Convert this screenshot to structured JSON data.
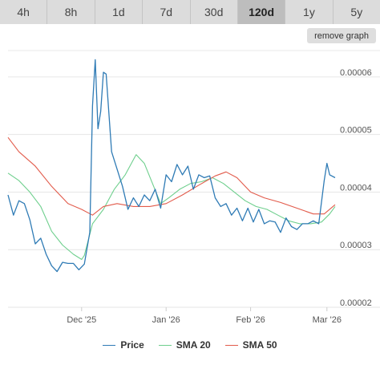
{
  "timeframe_tabs": [
    {
      "label": "4h"
    },
    {
      "label": "8h"
    },
    {
      "label": "1d"
    },
    {
      "label": "7d"
    },
    {
      "label": "30d"
    },
    {
      "label": "120d",
      "active": true
    },
    {
      "label": "1y"
    },
    {
      "label": "5y"
    }
  ],
  "remove_graph_label": "remove graph",
  "chart_data": {
    "type": "line",
    "x_start": "2025-11-04",
    "x_end": "2026-03-04",
    "ylim": [
      2e-05,
      6.5e-05
    ],
    "y_ticks": [
      {
        "value": 2e-05,
        "label": "0.00002"
      },
      {
        "value": 3e-05,
        "label": "0.00003"
      },
      {
        "value": 4e-05,
        "label": "0.00004"
      },
      {
        "value": 5e-05,
        "label": "0.00005"
      },
      {
        "value": 6e-05,
        "label": "0.00006"
      }
    ],
    "x_ticks": [
      {
        "date": "2025-12-01",
        "label": "Dec '25"
      },
      {
        "date": "2026-01-01",
        "label": "Jan '26"
      },
      {
        "date": "2026-02-01",
        "label": "Feb '26"
      },
      {
        "date": "2026-03-01",
        "label": "Mar '26"
      }
    ],
    "grid": true,
    "legend_position": "bottom",
    "series": [
      {
        "name": "Price",
        "color": "#2f7bb5",
        "points": [
          [
            "2025-11-04",
            3.95e-05
          ],
          [
            "2025-11-06",
            3.6e-05
          ],
          [
            "2025-11-08",
            3.85e-05
          ],
          [
            "2025-11-10",
            3.8e-05
          ],
          [
            "2025-11-12",
            3.52e-05
          ],
          [
            "2025-11-14",
            3.1e-05
          ],
          [
            "2025-11-16",
            3.2e-05
          ],
          [
            "2025-11-18",
            2.92e-05
          ],
          [
            "2025-11-20",
            2.72e-05
          ],
          [
            "2025-11-22",
            2.62e-05
          ],
          [
            "2025-11-24",
            2.78e-05
          ],
          [
            "2025-11-26",
            2.76e-05
          ],
          [
            "2025-11-28",
            2.76e-05
          ],
          [
            "2025-11-30",
            2.65e-05
          ],
          [
            "2025-12-02",
            2.75e-05
          ],
          [
            "2025-12-04",
            3.3e-05
          ],
          [
            "2025-12-05",
            5.5e-05
          ],
          [
            "2025-12-06",
            6.3e-05
          ],
          [
            "2025-12-07",
            5.1e-05
          ],
          [
            "2025-12-08",
            5.4e-05
          ],
          [
            "2025-12-09",
            6.08e-05
          ],
          [
            "2025-12-10",
            6.05e-05
          ],
          [
            "2025-12-12",
            4.7e-05
          ],
          [
            "2025-12-14",
            4.4e-05
          ],
          [
            "2025-12-16",
            4.1e-05
          ],
          [
            "2025-12-18",
            3.7e-05
          ],
          [
            "2025-12-20",
            3.9e-05
          ],
          [
            "2025-12-22",
            3.75e-05
          ],
          [
            "2025-12-24",
            3.95e-05
          ],
          [
            "2025-12-26",
            3.85e-05
          ],
          [
            "2025-12-28",
            4.05e-05
          ],
          [
            "2025-12-30",
            3.72e-05
          ],
          [
            "2026-01-01",
            4.3e-05
          ],
          [
            "2026-01-03",
            4.18e-05
          ],
          [
            "2026-01-05",
            4.48e-05
          ],
          [
            "2026-01-07",
            4.3e-05
          ],
          [
            "2026-01-09",
            4.45e-05
          ],
          [
            "2026-01-11",
            4.05e-05
          ],
          [
            "2026-01-13",
            4.3e-05
          ],
          [
            "2026-01-15",
            4.25e-05
          ],
          [
            "2026-01-17",
            4.28e-05
          ],
          [
            "2026-01-19",
            3.9e-05
          ],
          [
            "2026-01-21",
            3.75e-05
          ],
          [
            "2026-01-23",
            3.8e-05
          ],
          [
            "2026-01-25",
            3.6e-05
          ],
          [
            "2026-01-27",
            3.72e-05
          ],
          [
            "2026-01-29",
            3.5e-05
          ],
          [
            "2026-01-31",
            3.72e-05
          ],
          [
            "2026-02-02",
            3.48e-05
          ],
          [
            "2026-02-04",
            3.7e-05
          ],
          [
            "2026-02-06",
            3.45e-05
          ],
          [
            "2026-02-08",
            3.5e-05
          ],
          [
            "2026-02-10",
            3.48e-05
          ],
          [
            "2026-02-12",
            3.3e-05
          ],
          [
            "2026-02-14",
            3.55e-05
          ],
          [
            "2026-02-16",
            3.4e-05
          ],
          [
            "2026-02-18",
            3.35e-05
          ],
          [
            "2026-02-20",
            3.45e-05
          ],
          [
            "2026-02-22",
            3.45e-05
          ],
          [
            "2026-02-24",
            3.5e-05
          ],
          [
            "2026-02-26",
            3.45e-05
          ],
          [
            "2026-02-28",
            4.2e-05
          ],
          [
            "2026-03-01",
            4.5e-05
          ],
          [
            "2026-03-02",
            4.3e-05
          ],
          [
            "2026-03-04",
            4.25e-05
          ]
        ]
      },
      {
        "name": "SMA 20",
        "color": "#6ecf8d",
        "points": [
          [
            "2025-11-04",
            4.33e-05
          ],
          [
            "2025-11-08",
            4.2e-05
          ],
          [
            "2025-11-12",
            4e-05
          ],
          [
            "2025-11-16",
            3.75e-05
          ],
          [
            "2025-11-20",
            3.32e-05
          ],
          [
            "2025-11-24",
            3.08e-05
          ],
          [
            "2025-11-28",
            2.92e-05
          ],
          [
            "2025-12-01",
            2.83e-05
          ],
          [
            "2025-12-02",
            2.9e-05
          ],
          [
            "2025-12-05",
            3.45e-05
          ],
          [
            "2025-12-09",
            3.7e-05
          ],
          [
            "2025-12-13",
            4.05e-05
          ],
          [
            "2025-12-17",
            4.3e-05
          ],
          [
            "2025-12-21",
            4.65e-05
          ],
          [
            "2025-12-24",
            4.5e-05
          ],
          [
            "2025-12-27",
            4.15e-05
          ],
          [
            "2025-12-30",
            3.8e-05
          ],
          [
            "2026-01-02",
            3.9e-05
          ],
          [
            "2026-01-06",
            4.05e-05
          ],
          [
            "2026-01-10",
            4.15e-05
          ],
          [
            "2026-01-14",
            4.18e-05
          ],
          [
            "2026-01-18",
            4.25e-05
          ],
          [
            "2026-01-22",
            4.15e-05
          ],
          [
            "2026-01-26",
            4e-05
          ],
          [
            "2026-01-30",
            3.85e-05
          ],
          [
            "2026-02-03",
            3.75e-05
          ],
          [
            "2026-02-07",
            3.7e-05
          ],
          [
            "2026-02-11",
            3.6e-05
          ],
          [
            "2026-02-15",
            3.5e-05
          ],
          [
            "2026-02-19",
            3.45e-05
          ],
          [
            "2026-02-23",
            3.45e-05
          ],
          [
            "2026-02-27",
            3.48e-05
          ],
          [
            "2026-03-02",
            3.62e-05
          ],
          [
            "2026-03-04",
            3.75e-05
          ]
        ]
      },
      {
        "name": "SMA 50",
        "color": "#e25b4b",
        "points": [
          [
            "2025-11-04",
            4.95e-05
          ],
          [
            "2025-11-08",
            4.7e-05
          ],
          [
            "2025-11-14",
            4.45e-05
          ],
          [
            "2025-11-20",
            4.1e-05
          ],
          [
            "2025-11-26",
            3.8e-05
          ],
          [
            "2025-12-01",
            3.7e-05
          ],
          [
            "2025-12-05",
            3.6e-05
          ],
          [
            "2025-12-09",
            3.75e-05
          ],
          [
            "2025-12-14",
            3.8e-05
          ],
          [
            "2025-12-20",
            3.75e-05
          ],
          [
            "2025-12-26",
            3.75e-05
          ],
          [
            "2026-01-01",
            3.8e-05
          ],
          [
            "2026-01-07",
            3.95e-05
          ],
          [
            "2026-01-13",
            4.12e-05
          ],
          [
            "2026-01-19",
            4.28e-05
          ],
          [
            "2026-01-23",
            4.35e-05
          ],
          [
            "2026-01-27",
            4.25e-05
          ],
          [
            "2026-02-01",
            4e-05
          ],
          [
            "2026-02-06",
            3.9e-05
          ],
          [
            "2026-02-12",
            3.82e-05
          ],
          [
            "2026-02-18",
            3.72e-05
          ],
          [
            "2026-02-24",
            3.62e-05
          ],
          [
            "2026-02-28",
            3.62e-05
          ],
          [
            "2026-03-04",
            3.78e-05
          ]
        ]
      }
    ]
  }
}
